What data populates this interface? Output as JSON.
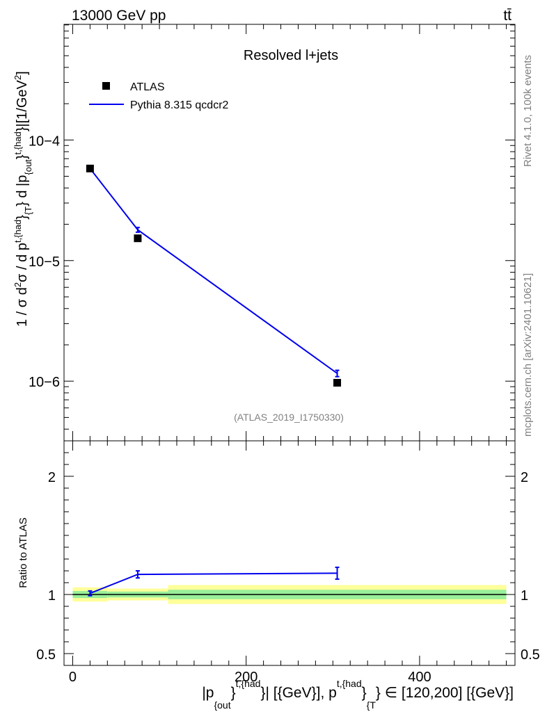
{
  "header": {
    "energy": "13000 GeV pp",
    "process": "tt̄"
  },
  "side": {
    "rivet": "Rivet 4.1.0,  100k events",
    "source": "mcplots.cern.ch [arXiv:2401.10621]"
  },
  "chart_data": [
    {
      "type": "line",
      "panel": "main",
      "title": "Resolved l+jets",
      "analysis_id": "(ATLAS_2019_I1750330)",
      "ylabel": "1 / σ d²σ / d p_T^{t,{had}} d |p_{out}^{t,{had}}| [1/GeV²]",
      "yscale": "log",
      "ylim": [
        3.2e-07,
        0.00091
      ],
      "xlim": [
        -10,
        510
      ],
      "ytick_labels": [
        "10−6",
        "10−5",
        "10−4"
      ],
      "legend": {
        "position": "top-left",
        "entries": [
          "ATLAS",
          "Pythia 8.315 qcdcr2"
        ]
      },
      "series": [
        {
          "name": "ATLAS",
          "style": "markers",
          "color": "#000000",
          "x": [
            20,
            75,
            305
          ],
          "y": [
            5.8e-05,
            1.53e-05,
            9.7e-07
          ]
        },
        {
          "name": "Pythia 8.315 qcdcr2",
          "style": "line",
          "color": "#0000ee",
          "x": [
            20,
            75,
            305
          ],
          "y": [
            5.8e-05,
            1.8e-05,
            1.16e-06
          ],
          "yerr": [
            1.5e-06,
            8e-07,
            7e-08
          ]
        }
      ]
    },
    {
      "type": "line",
      "panel": "ratio",
      "ylabel": "Ratio to ATLAS",
      "xlabel": "|p_{out}^{t,{had}}| [{GeV}], p_T^{t,{had}} ∈ [120,200] [{GeV}]",
      "xlim": [
        -10,
        510
      ],
      "ylim": [
        0.4,
        2.3
      ],
      "xticks": [
        0,
        200,
        400
      ],
      "yticks": [
        0.5,
        1,
        2
      ],
      "tick_labels": {
        "x": [
          "0",
          "200",
          "400"
        ],
        "y": [
          "0.5",
          "1",
          "2"
        ]
      },
      "uncertainty_bands": [
        {
          "x": [
            0,
            40
          ],
          "green": [
            0.97,
            1.03
          ],
          "yellow": [
            0.94,
            1.06
          ]
        },
        {
          "x": [
            40,
            110
          ],
          "green": [
            0.975,
            1.025
          ],
          "yellow": [
            0.95,
            1.05
          ]
        },
        {
          "x": [
            110,
            500
          ],
          "green": [
            0.96,
            1.04
          ],
          "yellow": [
            0.92,
            1.08
          ]
        }
      ],
      "series": [
        {
          "name": "Pythia 8.315 qcdcr2",
          "color": "#0000ee",
          "x": [
            20,
            75,
            305
          ],
          "y": [
            1.01,
            1.17,
            1.18
          ],
          "yerr": [
            0.02,
            0.03,
            0.05
          ]
        }
      ]
    }
  ]
}
